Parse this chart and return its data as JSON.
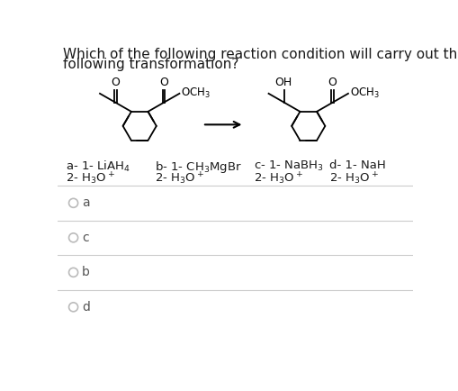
{
  "title_line1": "Which of the following reaction condition will carry out the",
  "title_line2": "following transformation?",
  "background_color": "#ffffff",
  "text_color": "#1a1a1a",
  "divider_color": "#cccccc",
  "circle_edge_color": "#bbbbbb",
  "option_text_color": "#555555",
  "figsize": [
    5.1,
    4.34
  ],
  "dpi": 100,
  "answer_options_order": [
    "a",
    "c",
    "b",
    "d"
  ]
}
